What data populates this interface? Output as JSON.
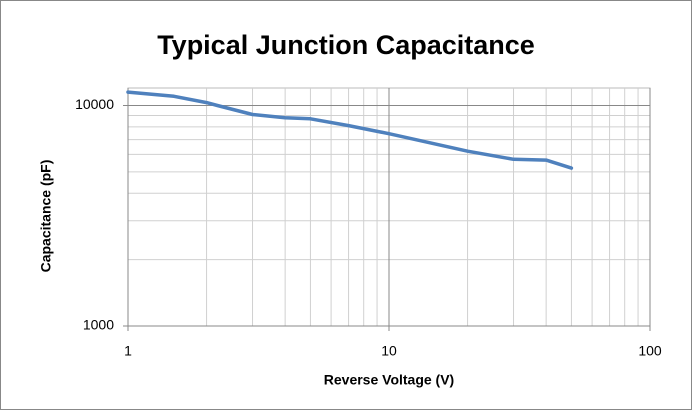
{
  "chart_data": {
    "type": "line",
    "title": "Typical Junction Capacitance",
    "x_label": "Reverse Voltage (V)",
    "y_label": "Capacitance (pF)",
    "x": [
      1,
      1.5,
      2,
      2.2,
      3,
      4,
      5,
      7,
      10,
      20,
      30,
      40,
      50
    ],
    "series": [
      {
        "name": "Capacitance",
        "color": "#4f81bd",
        "values": [
          11500,
          11000,
          10300,
          10000,
          9100,
          8800,
          8700,
          8100,
          7450,
          6200,
          5700,
          5650,
          5200
        ]
      }
    ],
    "xlog": true,
    "ylog": true,
    "xlim": [
      1,
      100
    ],
    "ylim": [
      1000,
      12000
    ],
    "xticks": [
      1,
      10,
      100
    ],
    "yticks": [
      1000,
      10000
    ],
    "xminorticks": [
      2,
      3,
      4,
      5,
      6,
      7,
      8,
      9,
      20,
      30,
      40,
      50,
      60,
      70,
      80,
      90
    ],
    "yminorticks": [
      2000,
      3000,
      4000,
      5000,
      6000,
      7000,
      8000,
      9000
    ],
    "grid": true,
    "legend": false
  }
}
